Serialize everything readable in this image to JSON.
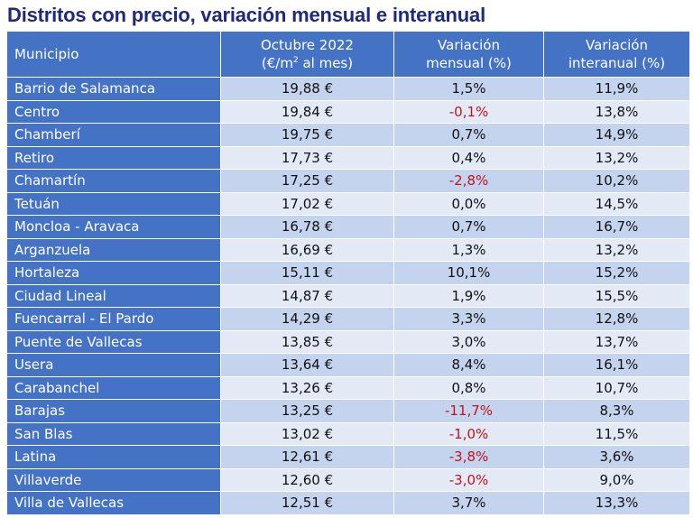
{
  "title": "Distritos con precio, variación mensual e interanual",
  "headers": {
    "municipio": "Municipio",
    "precio_line1": "Octubre 2022",
    "precio_line2_pre": "(€/m",
    "precio_line2_sup": "2",
    "precio_line2_post": " al mes)",
    "mensual_line1": "Variación",
    "mensual_line2": "mensual (%)",
    "interanual_line1": "Variación",
    "interanual_line2": "interanual (%)"
  },
  "rows": [
    {
      "name": "Barrio de Salamanca",
      "precio": "19,88 €",
      "mensual": "1,5%",
      "interanual": "11,9%"
    },
    {
      "name": "Centro",
      "precio": "19,84 €",
      "mensual": "-0,1%",
      "interanual": "13,8%"
    },
    {
      "name": "Chamberí",
      "precio": "19,75 €",
      "mensual": "0,7%",
      "interanual": "14,9%"
    },
    {
      "name": "Retiro",
      "precio": "17,73 €",
      "mensual": "0,4%",
      "interanual": "13,2%"
    },
    {
      "name": "Chamartín",
      "precio": "17,25 €",
      "mensual": "-2,8%",
      "interanual": "10,2%"
    },
    {
      "name": "Tetuán",
      "precio": "17,02 €",
      "mensual": "0,0%",
      "interanual": "14,5%"
    },
    {
      "name": "Moncloa - Aravaca",
      "precio": "16,78 €",
      "mensual": "0,7%",
      "interanual": "16,7%"
    },
    {
      "name": "Arganzuela",
      "precio": "16,69 €",
      "mensual": "1,3%",
      "interanual": "13,2%"
    },
    {
      "name": "Hortaleza",
      "precio": "15,11 €",
      "mensual": "10,1%",
      "interanual": "15,2%"
    },
    {
      "name": "Ciudad Lineal",
      "precio": "14,87 €",
      "mensual": "1,9%",
      "interanual": "15,5%"
    },
    {
      "name": "Fuencarral - El Pardo",
      "precio": "14,29 €",
      "mensual": "3,3%",
      "interanual": "12,8%"
    },
    {
      "name": "Puente de Vallecas",
      "precio": "13,85 €",
      "mensual": "3,0%",
      "interanual": "13,7%"
    },
    {
      "name": "Usera",
      "precio": "13,64 €",
      "mensual": "8,4%",
      "interanual": "16,1%"
    },
    {
      "name": "Carabanchel",
      "precio": "13,26 €",
      "mensual": "0,8%",
      "interanual": "10,7%"
    },
    {
      "name": "Barajas",
      "precio": "13,25 €",
      "mensual": "-11,7%",
      "interanual": "8,3%"
    },
    {
      "name": "San Blas",
      "precio": "13,02 €",
      "mensual": "-1,0%",
      "interanual": "11,5%"
    },
    {
      "name": "Latina",
      "precio": "12,61 €",
      "mensual": "-3,8%",
      "interanual": "3,6%"
    },
    {
      "name": "Villaverde",
      "precio": "12,60 €",
      "mensual": "-3,0%",
      "interanual": "9,0%"
    },
    {
      "name": "Villa de Vallecas",
      "precio": "12,51 €",
      "mensual": "3,7%",
      "interanual": "13,3%"
    }
  ],
  "colors": {
    "header_bg": "#4472c4",
    "row_dark": "#c5d4ee",
    "row_light": "#e3eaf6",
    "negative": "#c0131a",
    "title": "#1f2a7a"
  }
}
